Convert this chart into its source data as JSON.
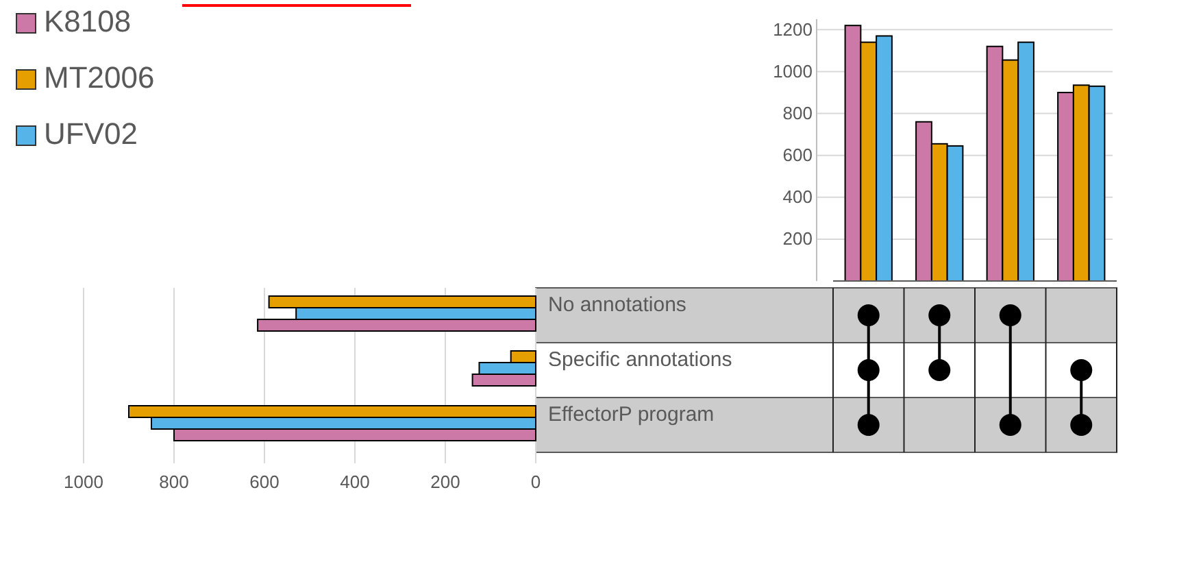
{
  "chart_data": [
    {
      "type": "bar",
      "categories": [
        null,
        null,
        null,
        null
      ],
      "series": [
        {
          "name": "K8108",
          "color": "#cc79a7",
          "values": [
            1220,
            760,
            1120,
            900
          ]
        },
        {
          "name": "MT2006",
          "color": "#e69f00",
          "values": [
            1140,
            655,
            1055,
            935
          ]
        },
        {
          "name": "UFV02",
          "color": "#56b4e9",
          "values": [
            1170,
            645,
            1140,
            930
          ]
        }
      ],
      "ylim": [
        0,
        1250
      ],
      "yticks": [
        200,
        400,
        600,
        800,
        1000,
        1200
      ],
      "grid": "y",
      "legend": "top left"
    },
    {
      "type": "bar",
      "orientation": "horizontal",
      "categories": [
        "No annotations",
        "Specific annotations",
        "EffectorP program"
      ],
      "series": [
        {
          "color": "#e69f00",
          "values": [
            590,
            55,
            900
          ]
        },
        {
          "color": "#56b4e9",
          "values": [
            530,
            125,
            850
          ]
        },
        {
          "color": "#cc79a7",
          "values": [
            615,
            140,
            800
          ]
        }
      ],
      "xlim": [
        1000,
        0
      ],
      "xticks": [
        1000,
        800,
        600,
        400,
        200,
        0
      ],
      "grid": "x"
    }
  ]
}
